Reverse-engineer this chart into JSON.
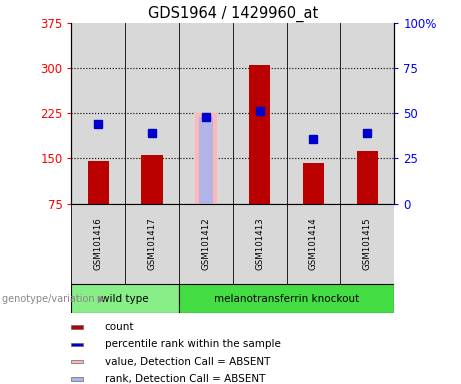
{
  "title": "GDS1964 / 1429960_at",
  "samples": [
    "GSM101416",
    "GSM101417",
    "GSM101412",
    "GSM101413",
    "GSM101414",
    "GSM101415"
  ],
  "bar_values": [
    145,
    155,
    225,
    305,
    142,
    163
  ],
  "percentile_values": [
    207,
    193,
    218,
    228,
    182,
    192
  ],
  "absent_sample_idx": 2,
  "absent_bar_value": 225,
  "absent_rank_value": 218,
  "ylim_left": [
    75,
    375
  ],
  "ylim_right": [
    0,
    100
  ],
  "yticks_left": [
    75,
    150,
    225,
    300,
    375
  ],
  "yticks_right": [
    0,
    25,
    50,
    75,
    100
  ],
  "bar_color": "#bb0000",
  "bar_color_absent": "#ffb6b6",
  "percentile_color": "#0000cc",
  "rank_absent_color": "#aab4ee",
  "bg_color": "#d8d8d8",
  "wt_color": "#88ee88",
  "mk_color": "#44dd44",
  "legend_items": [
    {
      "label": "count",
      "color": "#bb0000"
    },
    {
      "label": "percentile rank within the sample",
      "color": "#0000cc"
    },
    {
      "label": "value, Detection Call = ABSENT",
      "color": "#ffb6b6"
    },
    {
      "label": "rank, Detection Call = ABSENT",
      "color": "#aab4ee"
    }
  ],
  "bar_width": 0.4,
  "absent_bar_width": 0.25
}
